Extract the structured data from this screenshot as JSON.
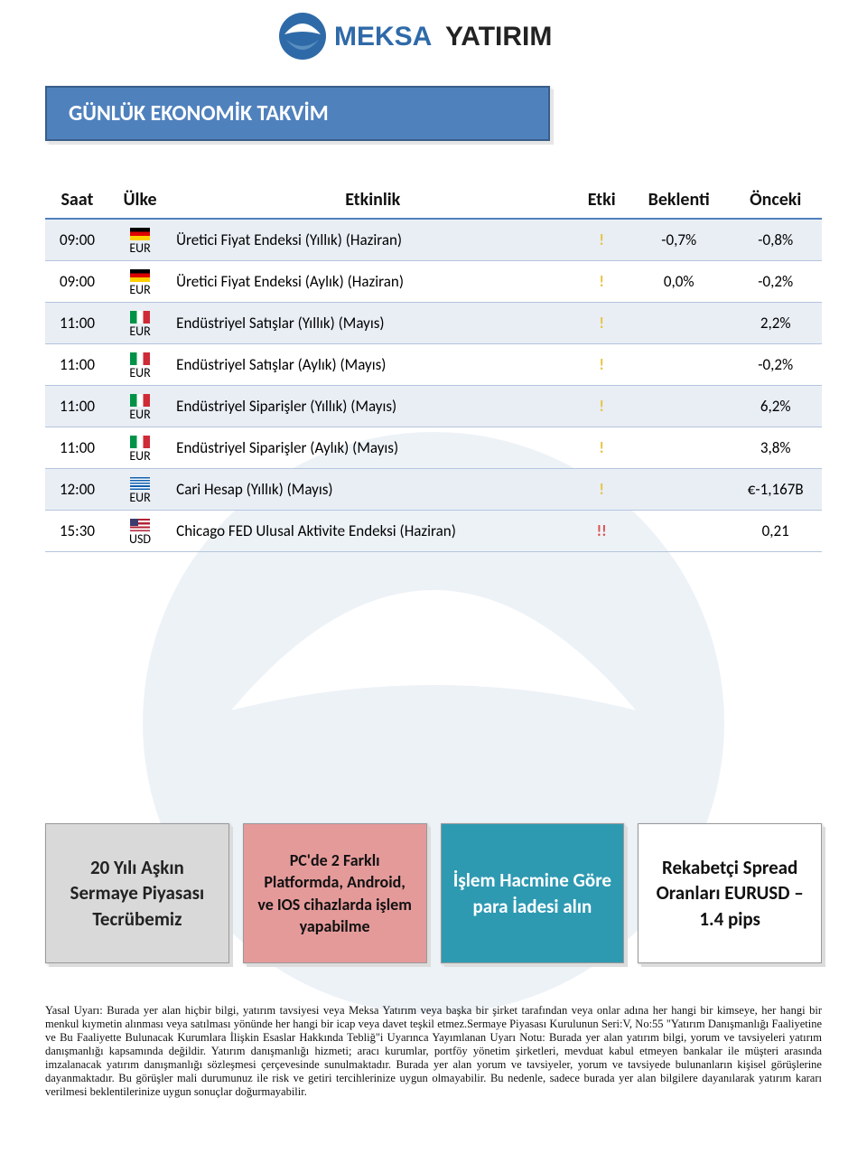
{
  "logo": {
    "brand": "MEKSA",
    "brand_sub": "YATIRIM",
    "brand_color": "#2f6aa8",
    "brand_sub_color": "#222222",
    "icon_color_dark": "#1f5a8f",
    "icon_color_light": "#5a90c0"
  },
  "title": "GÜNLÜK EKONOMİK TAKVİM",
  "title_bg": "#4f81bd",
  "title_text_color": "#ffffff",
  "columns": {
    "time": "Saat",
    "country": "Ülke",
    "event": "Etkinlik",
    "impact": "Etki",
    "forecast": "Beklenti",
    "previous": "Önceki"
  },
  "rows": [
    {
      "time": "09:00",
      "flag": "de",
      "currency": "EUR",
      "event": "Üretici Fiyat Endeksi (Yıllık) (Haziran)",
      "impact": "!",
      "impact_level": "low",
      "forecast": "-0,7%",
      "previous": "-0,8%",
      "shade": true
    },
    {
      "time": "09:00",
      "flag": "de",
      "currency": "EUR",
      "event": "Üretici Fiyat Endeksi (Aylık) (Haziran)",
      "impact": "!",
      "impact_level": "low",
      "forecast": "0,0%",
      "previous": "-0,2%",
      "shade": false
    },
    {
      "time": "11:00",
      "flag": "it",
      "currency": "EUR",
      "event": "Endüstriyel Satışlar (Yıllık) (Mayıs)",
      "impact": "!",
      "impact_level": "low",
      "forecast": "",
      "previous": "2,2%",
      "shade": true
    },
    {
      "time": "11:00",
      "flag": "it",
      "currency": "EUR",
      "event": "Endüstriyel Satışlar (Aylık) (Mayıs)",
      "impact": "!",
      "impact_level": "low",
      "forecast": "",
      "previous": "-0,2%",
      "shade": false
    },
    {
      "time": "11:00",
      "flag": "it",
      "currency": "EUR",
      "event": "Endüstriyel Siparişler (Yıllık) (Mayıs)",
      "impact": "!",
      "impact_level": "low",
      "forecast": "",
      "previous": "6,2%",
      "shade": true
    },
    {
      "time": "11:00",
      "flag": "it",
      "currency": "EUR",
      "event": "Endüstriyel Siparişler (Aylık) (Mayıs)",
      "impact": "!",
      "impact_level": "low",
      "forecast": "",
      "previous": "3,8%",
      "shade": false
    },
    {
      "time": "12:00",
      "flag": "gr",
      "currency": "EUR",
      "event": "Cari Hesap (Yıllık) (Mayıs)",
      "impact": "!",
      "impact_level": "low",
      "forecast": "",
      "previous": "€-1,167B",
      "shade": true
    },
    {
      "time": "15:30",
      "flag": "us",
      "currency": "USD",
      "event": "Chicago FED Ulusal Aktivite Endeksi (Haziran)",
      "impact": "!!",
      "impact_level": "high",
      "forecast": "",
      "previous": "0,21",
      "shade": false
    }
  ],
  "cards": [
    {
      "text": "20 Yılı Aşkın Sermaye Piyasası Tecrübemiz",
      "bg": "#d9d9d9",
      "text_color": "#222222"
    },
    {
      "text": "PC'de 2 Farklı Platformda, Android, ve IOS cihazlarda işlem yapabilme",
      "bg": "#e59a9a",
      "text_color": "#111111"
    },
    {
      "text": "İşlem Hacmine Göre para İadesi alın",
      "bg": "#2e9ab2",
      "text_color": "#ffffff"
    },
    {
      "text": "Rekabetçi Spread Oranları EURUSD – 1.4 pips",
      "bg": "#ffffff",
      "text_color": "#111111"
    }
  ],
  "disclaimer": "Yasal Uyarı: Burada yer alan hiçbir bilgi, yatırım tavsiyesi veya Meksa Yatırım veya başka bir şirket tarafından veya onlar adına her hangi bir kimseye, her hangi bir menkul kıymetin alınması veya satılması yönünde her hangi bir icap veya davet teşkil etmez.Sermaye Piyasası Kurulunun Seri:V, No:55 \"Yatırım Danışmanlığı Faaliyetine ve Bu Faaliyette Bulunacak Kurumlara İlişkin Esaslar Hakkında Tebliğ\"i Uyarınca Yayımlanan Uyarı Notu: Burada yer alan yatırım bilgi, yorum ve tavsiyeleri yatırım danışmanlığı kapsamında değildir. Yatırım danışmanlığı hizmeti; aracı kurumlar, portföy yönetim şirketleri, mevduat kabul etmeyen bankalar ile müşteri arasında imzalanacak yatırım danışmanlığı sözleşmesi çerçevesinde sunulmaktadır. Burada yer alan yorum ve tavsiyeler, yorum ve tavsiyede bulunanların kişisel görüşlerine dayanmaktadır. Bu görüşler mali durumunuz ile risk ve getiri tercihlerinize uygun olmayabilir. Bu nedenle, sadece burada yer alan bilgilere dayanılarak yatırım kararı verilmesi beklentilerinize uygun sonuçlar doğurmayabilir."
}
